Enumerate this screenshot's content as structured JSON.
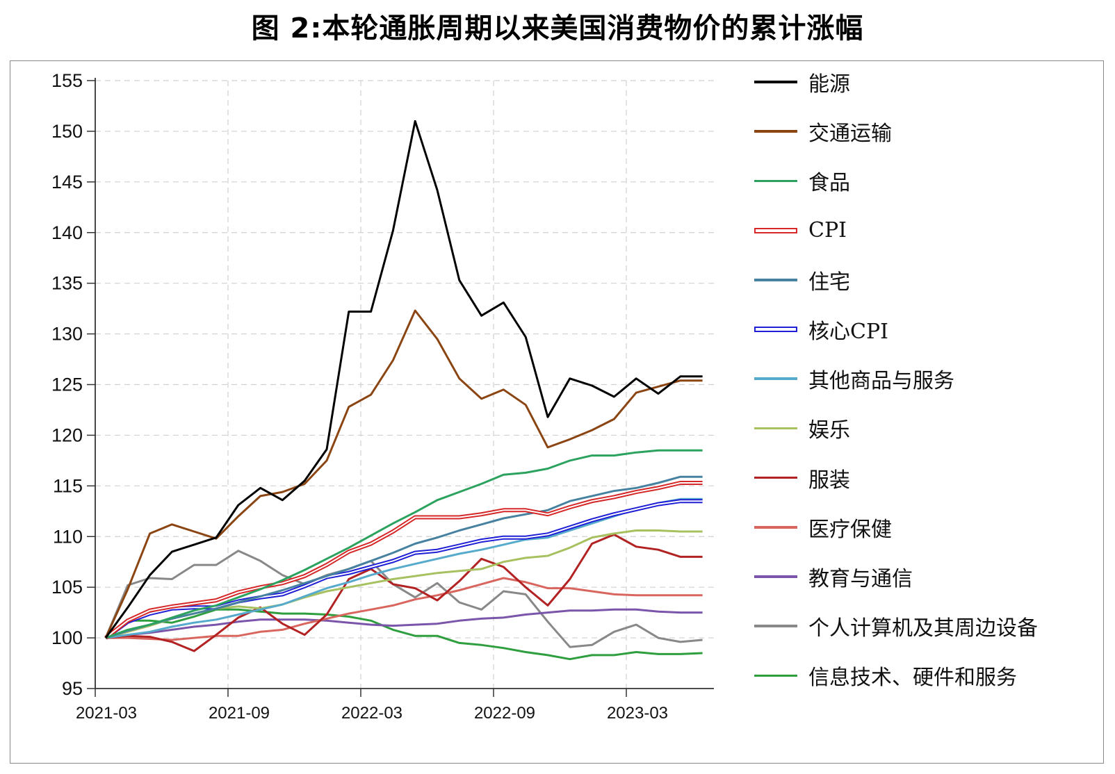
{
  "title": "图 2:本轮通胀周期以来美国消费物价的累计涨幅",
  "chart_data": {
    "type": "line",
    "title": "图 2:本轮通胀周期以来美国消费物价的累计涨幅",
    "xlabel": "",
    "ylabel": "",
    "ylim": [
      95,
      155
    ],
    "yticks": [
      95,
      100,
      105,
      110,
      115,
      120,
      125,
      130,
      135,
      140,
      145,
      150,
      155
    ],
    "xticks": [
      "2021-03",
      "2021-09",
      "2022-03",
      "2022-09",
      "2023-03"
    ],
    "x": [
      "2021-03",
      "2021-04",
      "2021-05",
      "2021-06",
      "2021-07",
      "2021-08",
      "2021-09",
      "2021-10",
      "2021-11",
      "2021-12",
      "2022-01",
      "2022-02",
      "2022-03",
      "2022-04",
      "2022-05",
      "2022-06",
      "2022-07",
      "2022-08",
      "2022-09",
      "2022-10",
      "2022-11",
      "2022-12",
      "2023-01",
      "2023-02",
      "2023-03",
      "2023-04",
      "2023-05",
      "2023-06"
    ],
    "grid": true,
    "legend_position": "right",
    "series": [
      {
        "name": "能源",
        "color": "#000000",
        "style": "solid",
        "values": [
          100,
          103.0,
          106.2,
          108.5,
          109.2,
          109.9,
          113.1,
          114.8,
          113.6,
          115.5,
          118.6,
          132.2,
          132.2,
          140.2,
          151.0,
          144.2,
          135.3,
          131.8,
          133.1,
          129.7,
          121.8,
          125.6,
          124.9,
          123.8,
          125.6,
          124.1,
          125.8,
          125.8
        ]
      },
      {
        "name": "交通运输",
        "color": "#8B4513",
        "style": "solid",
        "values": [
          100,
          104.8,
          110.3,
          111.2,
          110.5,
          109.8,
          112.0,
          114.0,
          114.4,
          115.2,
          117.5,
          122.8,
          124.0,
          127.4,
          132.3,
          129.5,
          125.6,
          123.6,
          124.5,
          123.0,
          118.8,
          119.6,
          120.5,
          121.6,
          124.2,
          124.8,
          125.4,
          125.4
        ]
      },
      {
        "name": "食品",
        "color": "#2ca25f",
        "style": "solid",
        "values": [
          100,
          100.8,
          101.3,
          102.0,
          102.7,
          103.2,
          104.0,
          104.8,
          105.7,
          106.7,
          107.8,
          108.9,
          110.1,
          111.3,
          112.4,
          113.6,
          114.4,
          115.2,
          116.1,
          116.3,
          116.7,
          117.5,
          118.0,
          118.0,
          118.3,
          118.5,
          118.5,
          118.5
        ]
      },
      {
        "name": "CPI",
        "color": "#d62728",
        "style": "double",
        "values": [
          100,
          101.7,
          102.7,
          103.1,
          103.4,
          103.7,
          104.5,
          105.0,
          105.4,
          106.1,
          107.2,
          108.5,
          109.3,
          110.5,
          111.9,
          111.9,
          111.9,
          112.2,
          112.6,
          112.6,
          112.2,
          112.9,
          113.5,
          113.9,
          114.4,
          114.8,
          115.3,
          115.3
        ]
      },
      {
        "name": "住宅",
        "color": "#4682a0",
        "style": "solid",
        "values": [
          100,
          100.7,
          101.3,
          101.9,
          102.4,
          102.9,
          103.5,
          104.1,
          104.7,
          105.4,
          106.1,
          106.8,
          107.6,
          108.4,
          109.3,
          109.9,
          110.6,
          111.2,
          111.8,
          112.2,
          112.6,
          113.5,
          114.0,
          114.5,
          114.8,
          115.3,
          115.9,
          115.9
        ]
      },
      {
        "name": "核心CPI",
        "color": "#1f1fd6",
        "style": "double",
        "values": [
          100,
          101.6,
          102.4,
          102.9,
          103.0,
          103.0,
          103.6,
          104.0,
          104.3,
          105.1,
          106.0,
          106.4,
          107.0,
          107.6,
          108.4,
          108.6,
          109.1,
          109.6,
          109.9,
          109.9,
          110.2,
          110.9,
          111.6,
          112.2,
          112.7,
          113.2,
          113.5,
          113.5
        ]
      },
      {
        "name": "其他商品与服务",
        "color": "#56aacc",
        "style": "solid",
        "values": [
          100,
          100.3,
          100.6,
          101.1,
          101.5,
          101.8,
          102.3,
          102.8,
          103.3,
          104.1,
          104.9,
          105.5,
          106.2,
          106.8,
          107.3,
          107.8,
          108.3,
          108.7,
          109.2,
          109.7,
          109.9,
          110.6,
          111.3,
          112.0,
          112.7,
          113.3,
          113.7,
          113.7
        ]
      },
      {
        "name": "娱乐",
        "color": "#a7c060",
        "style": "solid",
        "values": [
          100,
          100.6,
          101.2,
          101.9,
          102.4,
          102.9,
          103.1,
          102.9,
          103.3,
          104.0,
          104.6,
          105.0,
          105.4,
          105.8,
          106.1,
          106.4,
          106.6,
          106.8,
          107.5,
          107.9,
          108.1,
          108.9,
          109.9,
          110.3,
          110.6,
          110.6,
          110.5,
          110.5
        ]
      },
      {
        "name": "服装",
        "color": "#b22222",
        "style": "solid",
        "values": [
          100,
          100.2,
          100.1,
          99.6,
          98.7,
          100.3,
          102.0,
          103.0,
          101.4,
          100.3,
          102.3,
          105.8,
          106.8,
          105.3,
          104.9,
          103.7,
          105.6,
          107.8,
          107.0,
          105.0,
          103.2,
          105.8,
          109.3,
          110.2,
          109.0,
          108.7,
          108.0,
          108.0
        ]
      },
      {
        "name": "医疗保健",
        "color": "#d9665e",
        "style": "solid",
        "values": [
          100,
          100.0,
          99.9,
          99.8,
          100.0,
          100.2,
          100.2,
          100.6,
          100.8,
          101.4,
          101.9,
          102.4,
          102.8,
          103.2,
          103.8,
          104.2,
          104.7,
          105.3,
          105.9,
          105.5,
          104.9,
          104.9,
          104.6,
          104.3,
          104.2,
          104.2,
          104.2,
          104.2
        ]
      },
      {
        "name": "教育与通信",
        "color": "#7a55aa",
        "style": "solid",
        "values": [
          100,
          100.3,
          100.5,
          100.8,
          101.1,
          101.3,
          101.6,
          101.8,
          101.8,
          101.8,
          101.7,
          101.5,
          101.3,
          101.2,
          101.3,
          101.4,
          101.7,
          101.9,
          102.0,
          102.3,
          102.5,
          102.7,
          102.7,
          102.8,
          102.8,
          102.6,
          102.5,
          102.5
        ]
      },
      {
        "name": "个人计算机及其周边设备",
        "color": "#888888",
        "style": "solid",
        "values": [
          100,
          105.2,
          105.9,
          105.8,
          107.2,
          107.2,
          108.6,
          107.6,
          106.2,
          105.3,
          106.2,
          106.8,
          107.6,
          105.3,
          104.0,
          105.4,
          103.5,
          102.8,
          104.6,
          104.3,
          101.6,
          99.1,
          99.3,
          100.6,
          101.3,
          100.0,
          99.6,
          99.8
        ]
      },
      {
        "name": "信息技术、硬件和服务",
        "color": "#2e9e3e",
        "style": "solid",
        "values": [
          100,
          101.7,
          101.7,
          101.5,
          102.1,
          102.8,
          102.8,
          102.6,
          102.4,
          102.4,
          102.3,
          102.1,
          101.7,
          100.8,
          100.2,
          100.2,
          99.5,
          99.3,
          99.0,
          98.6,
          98.3,
          97.9,
          98.3,
          98.3,
          98.6,
          98.4,
          98.4,
          98.5
        ]
      }
    ]
  }
}
